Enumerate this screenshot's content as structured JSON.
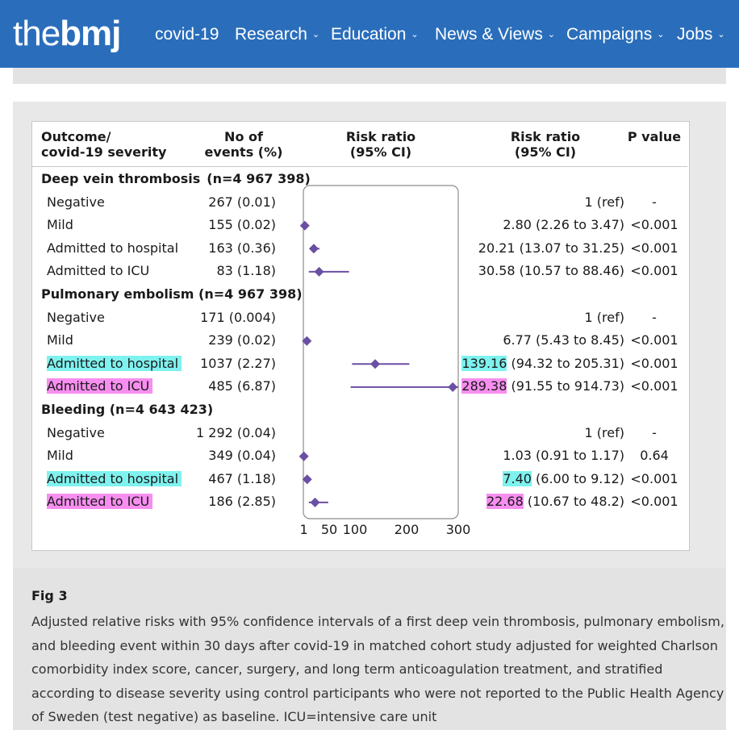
{
  "header": {
    "logo_thin": "the",
    "logo_bold": "bmj",
    "nav": [
      {
        "label": "covid-19",
        "has_menu": false
      },
      {
        "label": "Research",
        "has_menu": true
      },
      {
        "label": "Education",
        "has_menu": true
      },
      {
        "label": "News & Views",
        "has_menu": true
      },
      {
        "label": "Campaigns",
        "has_menu": true
      },
      {
        "label": "Jobs",
        "has_menu": true
      }
    ]
  },
  "chart_data": {
    "type": "forest",
    "columns": {
      "outcome": "Outcome/\ncovid-19 severity",
      "events": "No of\nevents (%)",
      "plot": "Risk ratio\n(95% CI)",
      "rr": "Risk ratio\n(95% CI)",
      "p": "P value"
    },
    "x_ticks": [
      1,
      50,
      100,
      200,
      300
    ],
    "xlim": [
      0,
      300
    ],
    "highlight_colors": {
      "cyan": "#7ff2ef",
      "pink": "#f78ef0"
    },
    "marker_color": "#6a4fa3",
    "groups": [
      {
        "title": "Deep vein thrombosis (n=4 967 398)",
        "rows": [
          {
            "label": "Negative",
            "events": "267 (0.01)",
            "rr_value": "1",
            "rr_ci": "(ref)",
            "p": "-",
            "rr": null,
            "lo": null,
            "hi": null,
            "label_hl": "",
            "rr_hl": ""
          },
          {
            "label": "Mild",
            "events": "155 (0.02)",
            "rr_value": "2.80",
            "rr_ci": "(2.26 to 3.47)",
            "p": "<0.001",
            "rr": 2.8,
            "lo": 2.26,
            "hi": 3.47,
            "label_hl": "",
            "rr_hl": ""
          },
          {
            "label": "Admitted to hospital",
            "events": "163 (0.36)",
            "rr_value": "20.21",
            "rr_ci": "(13.07 to 31.25)",
            "p": "<0.001",
            "rr": 20.21,
            "lo": 13.07,
            "hi": 31.25,
            "label_hl": "",
            "rr_hl": ""
          },
          {
            "label": "Admitted to ICU",
            "events": "83 (1.18)",
            "rr_value": "30.58",
            "rr_ci": "(10.57 to 88.46)",
            "p": "<0.001",
            "rr": 30.58,
            "lo": 10.57,
            "hi": 88.46,
            "label_hl": "",
            "rr_hl": ""
          }
        ]
      },
      {
        "title": "Pulmonary embolism (n=4 967 398)",
        "rows": [
          {
            "label": "Negative",
            "events": "171 (0.004)",
            "rr_value": "1",
            "rr_ci": "(ref)",
            "p": "-",
            "rr": null,
            "lo": null,
            "hi": null,
            "label_hl": "",
            "rr_hl": ""
          },
          {
            "label": "Mild",
            "events": "239 (0.02)",
            "rr_value": "6.77",
            "rr_ci": "(5.43 to 8.45)",
            "p": "<0.001",
            "rr": 6.77,
            "lo": 5.43,
            "hi": 8.45,
            "label_hl": "",
            "rr_hl": ""
          },
          {
            "label": "Admitted to hospital",
            "events": "1037 (2.27)",
            "rr_value": "139.16",
            "rr_ci": "(94.32 to 205.31)",
            "p": "<0.001",
            "rr": 139.16,
            "lo": 94.32,
            "hi": 205.31,
            "label_hl": "cyan",
            "rr_hl": "cyan"
          },
          {
            "label": "Admitted to ICU",
            "events": "485 (6.87)",
            "rr_value": "289.38",
            "rr_ci": "(91.55 to 914.73)",
            "p": "<0.001",
            "rr": 289.38,
            "lo": 91.55,
            "hi": 914.73,
            "label_hl": "pink",
            "rr_hl": "pink"
          }
        ]
      },
      {
        "title": "Bleeding (n=4 643 423)",
        "rows": [
          {
            "label": "Negative",
            "events": "1 292 (0.04)",
            "rr_value": "1",
            "rr_ci": "(ref)",
            "p": "-",
            "rr": null,
            "lo": null,
            "hi": null,
            "label_hl": "",
            "rr_hl": ""
          },
          {
            "label": "Mild",
            "events": "349 (0.04)",
            "rr_value": "1.03",
            "rr_ci": "(0.91 to 1.17)",
            "p": "0.64",
            "rr": 1.03,
            "lo": 0.91,
            "hi": 1.17,
            "label_hl": "",
            "rr_hl": ""
          },
          {
            "label": "Admitted to hospital",
            "events": "467 (1.18)",
            "rr_value": "7.40",
            "rr_ci": "(6.00 to 9.12)",
            "p": "<0.001",
            "rr": 7.4,
            "lo": 6.0,
            "hi": 9.12,
            "label_hl": "cyan",
            "rr_hl": "cyan"
          },
          {
            "label": "Admitted to ICU",
            "events": "186 (2.85)",
            "rr_value": "22.68",
            "rr_ci": "(10.67 to 48.2)",
            "p": "<0.001",
            "rr": 22.68,
            "lo": 10.67,
            "hi": 48.2,
            "label_hl": "pink",
            "rr_hl": "pink"
          }
        ]
      }
    ]
  },
  "caption": {
    "title": "Fig 3",
    "text": "Adjusted relative risks with 95% confidence intervals of a first deep vein thrombosis, pulmonary embolism, and bleeding event within 30 days after covid-19 in matched cohort study adjusted for weighted Charlson comorbidity index score, cancer, surgery, and long term anticoagulation treatment, and stratified according to disease severity using control participants who were not reported to the Public Health Agency of Sweden (test negative) as baseline. ICU=intensive care unit"
  }
}
